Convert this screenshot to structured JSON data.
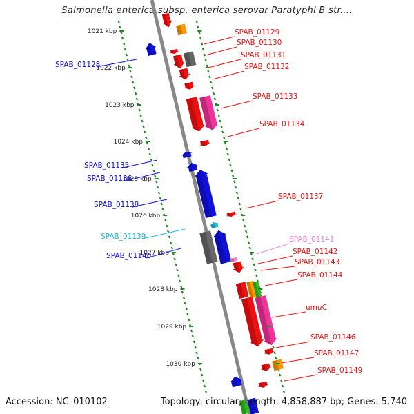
{
  "title": "Salmonella enterica subsp. enterica serovar Paratyphi B str....",
  "footer": {
    "accession": "Accession: NC_010102",
    "stats": "Topology: circular; Length: 4,858,887 bp; Genes: 5,740"
  },
  "colors": {
    "red": "#ee1111",
    "pink": "#ee3399",
    "pink_light": "#ee88cc",
    "blue": "#1111dd",
    "cyan": "#22bbdd",
    "orange": "#ff9900",
    "gray": "#666666",
    "green": "#33bb22",
    "tick_green": "#228822",
    "backbone": "#888888"
  },
  "kbp_labels": [
    "1021 kbp",
    "1022 kbp",
    "1023 kbp",
    "1024 kbp",
    "1025 kbp",
    "1026 kbp",
    "1027 kbp",
    "1028 kbp",
    "1029 kbp",
    "1030 kbp"
  ],
  "gene_labels": [
    {
      "text": "SPAB_01128",
      "side": "left",
      "color": "blue"
    },
    {
      "text": "SPAB_01129",
      "side": "right",
      "color": "red"
    },
    {
      "text": "SPAB_01130",
      "side": "right",
      "color": "red"
    },
    {
      "text": "SPAB_01131",
      "side": "right",
      "color": "red"
    },
    {
      "text": "SPAB_01132",
      "side": "right",
      "color": "red"
    },
    {
      "text": "SPAB_01133",
      "side": "right",
      "color": "red"
    },
    {
      "text": "SPAB_01134",
      "side": "right",
      "color": "red"
    },
    {
      "text": "SPAB_01135",
      "side": "left",
      "color": "blue"
    },
    {
      "text": "SPAB_01136",
      "side": "left",
      "color": "blue"
    },
    {
      "text": "SPAB_01137",
      "side": "right",
      "color": "red"
    },
    {
      "text": "SPAB_01138",
      "side": "left",
      "color": "blue"
    },
    {
      "text": "SPAB_01139",
      "side": "left",
      "color": "cyan"
    },
    {
      "text": "SPAB_01140",
      "side": "left",
      "color": "blue"
    },
    {
      "text": "SPAB_01141",
      "side": "right",
      "color": "pink_light"
    },
    {
      "text": "SPAB_01142",
      "side": "right",
      "color": "red"
    },
    {
      "text": "SPAB_01143",
      "side": "right",
      "color": "red"
    },
    {
      "text": "SPAB_01144",
      "side": "right",
      "color": "red"
    },
    {
      "text": "umuC",
      "side": "right",
      "color": "red"
    },
    {
      "text": "SPAB_01146",
      "side": "right",
      "color": "red"
    },
    {
      "text": "SPAB_01147",
      "side": "right",
      "color": "red"
    },
    {
      "text": "SPAB_01149",
      "side": "right",
      "color": "red"
    }
  ]
}
